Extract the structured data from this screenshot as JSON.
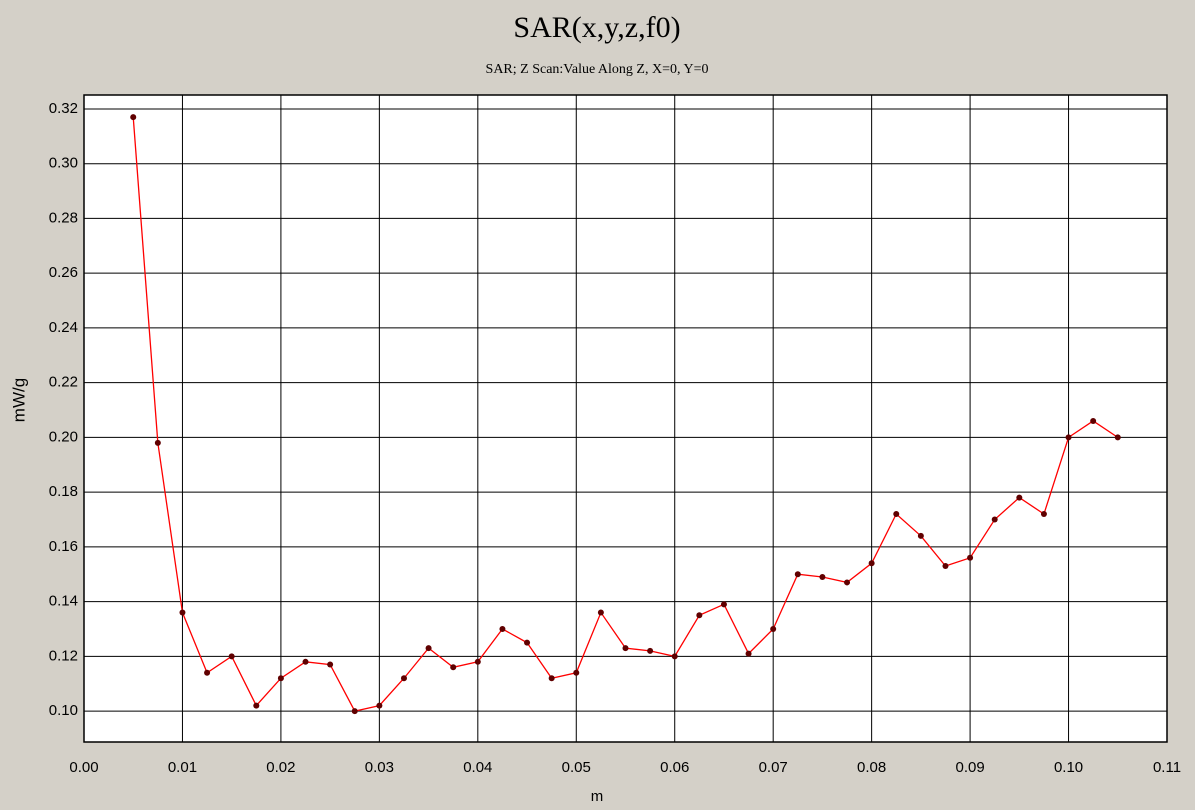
{
  "chart_data": {
    "type": "line",
    "title": "SAR(x,y,z,f0)",
    "subtitle": "SAR; Z Scan:Value Along Z, X=0, Y=0",
    "xlabel": "m",
    "ylabel": "mW/g",
    "x": [
      0.005,
      0.0075,
      0.01,
      0.0125,
      0.015,
      0.0175,
      0.02,
      0.0225,
      0.025,
      0.0275,
      0.03,
      0.0325,
      0.035,
      0.0375,
      0.04,
      0.0425,
      0.045,
      0.0475,
      0.05,
      0.0525,
      0.055,
      0.0575,
      0.06,
      0.0625,
      0.065,
      0.0675,
      0.07,
      0.0725,
      0.075,
      0.0775,
      0.08,
      0.0825,
      0.085,
      0.0875,
      0.09,
      0.0925,
      0.095,
      0.0975,
      0.1,
      0.1025,
      0.105
    ],
    "series": [
      {
        "name": "SAR",
        "color": "#ff0000",
        "marker_color": "#600000",
        "values": [
          0.317,
          0.198,
          0.136,
          0.114,
          0.12,
          0.102,
          0.112,
          0.118,
          0.117,
          0.1,
          0.102,
          0.112,
          0.123,
          0.116,
          0.118,
          0.13,
          0.125,
          0.112,
          0.114,
          0.136,
          0.123,
          0.122,
          0.12,
          0.135,
          0.139,
          0.121,
          0.13,
          0.15,
          0.149,
          0.147,
          0.154,
          0.172,
          0.164,
          0.153,
          0.156,
          0.17,
          0.178,
          0.172,
          0.2,
          0.206,
          0.2
        ]
      }
    ],
    "xlim": [
      0,
      0.11
    ],
    "xticks": [
      {
        "value": 0,
        "label": "0.00"
      },
      {
        "value": 0.01,
        "label": "0.01"
      },
      {
        "value": 0.02,
        "label": "0.02"
      },
      {
        "value": 0.03,
        "label": "0.03"
      },
      {
        "value": 0.04,
        "label": "0.04"
      },
      {
        "value": 0.05,
        "label": "0.05"
      },
      {
        "value": 0.06,
        "label": "0.06"
      },
      {
        "value": 0.07,
        "label": "0.07"
      },
      {
        "value": 0.08,
        "label": "0.08"
      },
      {
        "value": 0.09,
        "label": "0.09"
      },
      {
        "value": 0.1,
        "label": "0.10"
      },
      {
        "value": 0.11,
        "label": "0.11"
      }
    ],
    "ylim": [
      0.0887,
      0.3251
    ],
    "yticks": [
      {
        "value": 0.1,
        "label": "0.10"
      },
      0.12,
      0.14,
      0.16,
      0.18,
      {
        "value": 0.2,
        "label": "0.20"
      },
      0.22,
      0.24,
      0.26,
      0.28,
      {
        "value": 0.3,
        "label": "0.30"
      },
      0.32
    ],
    "grid": true
  }
}
